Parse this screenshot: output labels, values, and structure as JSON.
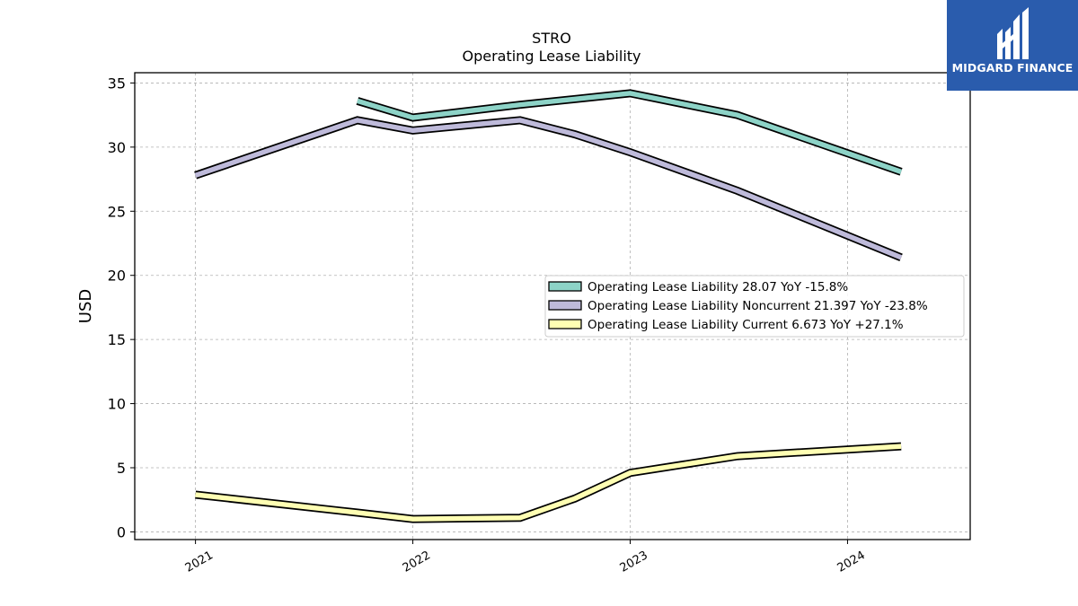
{
  "branding": {
    "name": "MIDGARD FINANCE",
    "bg_color": "#2a5cad"
  },
  "chart_data": {
    "type": "line",
    "title": "STRO",
    "subtitle": "Operating Lease Liability",
    "ylabel": "USD",
    "xlabel": "",
    "ylim": [
      -0.6,
      35.8
    ],
    "yticks": [
      0,
      5,
      10,
      15,
      20,
      25,
      30,
      35
    ],
    "xlim": [
      "2020-09-21",
      "2024-07-25"
    ],
    "xticks": [
      {
        "date": "2021-01-01",
        "label": "2021"
      },
      {
        "date": "2022-01-01",
        "label": "2022"
      },
      {
        "date": "2023-01-01",
        "label": "2023"
      },
      {
        "date": "2024-01-01",
        "label": "2024"
      }
    ],
    "grid": true,
    "legend_position": "center-right",
    "series": [
      {
        "name": "Operating Lease Liability",
        "legend": "Operating Lease Liability  28.07 YoY -15.8%",
        "color": "#8dd3c7",
        "points": [
          [
            "2021-09-30",
            33.6
          ],
          [
            "2022-01-01",
            32.3
          ],
          [
            "2022-06-30",
            33.3
          ],
          [
            "2023-01-01",
            34.2
          ],
          [
            "2023-06-30",
            32.5
          ],
          [
            "2024-03-31",
            28.07
          ]
        ]
      },
      {
        "name": "Operating Lease Liability Noncurrent",
        "legend": "Operating Lease Liability Noncurrent  21.397 YoY -23.8%",
        "color": "#bebada",
        "points": [
          [
            "2021-01-01",
            27.8
          ],
          [
            "2021-09-30",
            32.1
          ],
          [
            "2022-01-01",
            31.3
          ],
          [
            "2022-06-30",
            32.1
          ],
          [
            "2022-09-30",
            31.0
          ],
          [
            "2023-01-01",
            29.6
          ],
          [
            "2023-06-30",
            26.6
          ],
          [
            "2024-03-31",
            21.397
          ]
        ]
      },
      {
        "name": "Operating Lease Liability Current",
        "legend": "Operating Lease Liability Current  6.673 YoY +27.1%",
        "color": "#ffffb3",
        "points": [
          [
            "2021-01-01",
            2.9
          ],
          [
            "2021-09-30",
            1.5
          ],
          [
            "2022-01-01",
            1.0
          ],
          [
            "2022-06-30",
            1.1
          ],
          [
            "2022-09-30",
            2.6
          ],
          [
            "2023-01-01",
            4.6
          ],
          [
            "2023-06-30",
            5.9
          ],
          [
            "2024-03-31",
            6.673
          ]
        ]
      }
    ]
  }
}
